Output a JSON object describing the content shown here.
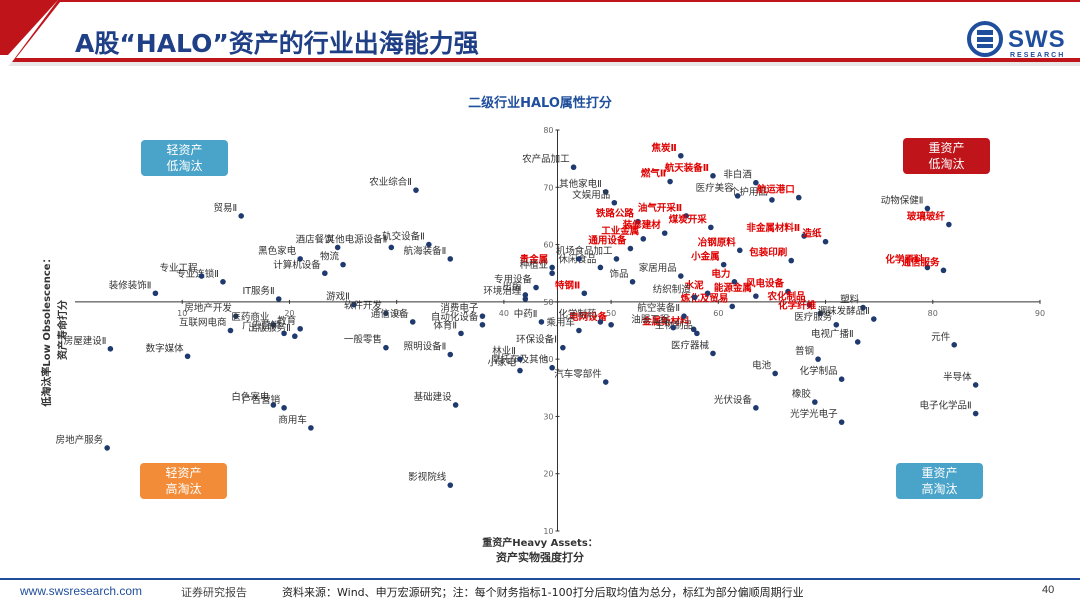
{
  "header": {
    "title": "A股“HALO”资产的行业出海能力强",
    "logo_text": "SWS",
    "logo_sub": "RESEARCH"
  },
  "footer": {
    "url": "www.swsresearch.com",
    "doc_type": "证券研究报告",
    "source_note": "资料来源：Wind、申万宏源研究；注：每个财务指标1-100打分后取均值为总分，标红为部分偏顺周期行业",
    "page": "40"
  },
  "colors": {
    "brand_blue": "#1f4e9c",
    "dot": "#1f3a6e",
    "highlight_red": "#e00000",
    "quad_light_blue": "#4aa3c9",
    "quad_red": "#c0141b",
    "quad_orange": "#f28c38"
  },
  "quadrants": [
    {
      "line1": "轻资产",
      "line2": "低淘汰",
      "color": "#4aa3c9"
    },
    {
      "line1": "重资产",
      "line2": "低淘汰",
      "color": "#c0141b"
    },
    {
      "line1": "轻资产",
      "line2": "高淘汰",
      "color": "#f28c38"
    },
    {
      "line1": "重资产",
      "line2": "高淘汰",
      "color": "#4aa3c9"
    }
  ],
  "chart_data": {
    "type": "scatter",
    "title": "二级行业HALO属性打分",
    "xlabel_line1": "重资产Heavy Assets：",
    "xlabel_line2": "资产实物强度打分",
    "ylabel_line1": "低淘汰率Low Obsolescence：",
    "ylabel_line2": "资产寿命打分",
    "xlim": [
      0,
      90
    ],
    "ylim": [
      10,
      80
    ],
    "x_ticks": [
      10,
      20,
      30,
      40,
      50,
      60,
      70,
      80,
      90
    ],
    "y_ticks": [
      10,
      20,
      30,
      40,
      50,
      60,
      70,
      80
    ],
    "crosshair": {
      "x": 45,
      "y": 50
    },
    "points": [
      {
        "name": "农产品加工",
        "x": 46.5,
        "y": 73.5,
        "red": false
      },
      {
        "name": "其他家电Ⅱ",
        "x": 49.5,
        "y": 69.2,
        "red": false
      },
      {
        "name": "文娱用品",
        "x": 50.3,
        "y": 67.3,
        "red": false
      },
      {
        "name": "焦炭Ⅱ",
        "x": 56.5,
        "y": 75.5,
        "red": true
      },
      {
        "name": "燃气Ⅱ",
        "x": 55.5,
        "y": 71.0,
        "red": true
      },
      {
        "name": "航天装备Ⅱ",
        "x": 59.5,
        "y": 72.0,
        "red": true
      },
      {
        "name": "非白酒",
        "x": 63.5,
        "y": 70.8,
        "red": false
      },
      {
        "name": "医疗美容",
        "x": 61.8,
        "y": 68.5,
        "red": false
      },
      {
        "name": "个护用品",
        "x": 65.0,
        "y": 67.8,
        "red": false
      },
      {
        "name": "航运港口",
        "x": 67.5,
        "y": 68.2,
        "red": true
      },
      {
        "name": "动物保健Ⅱ",
        "x": 79.5,
        "y": 66.3,
        "red": false
      },
      {
        "name": "玻璃玻纤",
        "x": 81.5,
        "y": 63.5,
        "red": true
      },
      {
        "name": "铁路公路",
        "x": 52.5,
        "y": 64.0,
        "red": true
      },
      {
        "name": "油气开采Ⅱ",
        "x": 57.0,
        "y": 65.0,
        "red": true
      },
      {
        "name": "工业金属",
        "x": 53.0,
        "y": 61.0,
        "red": true
      },
      {
        "name": "装修建材",
        "x": 55.0,
        "y": 62.0,
        "red": true
      },
      {
        "name": "煤炭开采",
        "x": 59.3,
        "y": 63.0,
        "red": true
      },
      {
        "name": "非金属材料Ⅱ",
        "x": 68.0,
        "y": 61.5,
        "red": true
      },
      {
        "name": "造纸",
        "x": 70.0,
        "y": 60.5,
        "red": true
      },
      {
        "name": "通用设备",
        "x": 51.8,
        "y": 59.3,
        "red": true
      },
      {
        "name": "冶钢原料",
        "x": 62.0,
        "y": 59.0,
        "red": true
      },
      {
        "name": "包装印刷",
        "x": 66.8,
        "y": 57.2,
        "red": true
      },
      {
        "name": "化学原料",
        "x": 79.5,
        "y": 56.0,
        "red": true
      },
      {
        "name": "通信服务",
        "x": 81.0,
        "y": 55.5,
        "red": true
      },
      {
        "name": "小金属",
        "x": 60.5,
        "y": 56.5,
        "red": true
      },
      {
        "name": "电力",
        "x": 61.5,
        "y": 53.5,
        "red": true
      },
      {
        "name": "风电设备",
        "x": 66.5,
        "y": 51.8,
        "red": true
      },
      {
        "name": "能源金属",
        "x": 63.5,
        "y": 51.0,
        "red": true
      },
      {
        "name": "水泥",
        "x": 59.0,
        "y": 51.5,
        "red": true
      },
      {
        "name": "农化制品",
        "x": 68.5,
        "y": 49.5,
        "red": true
      },
      {
        "name": "炼化及贸易",
        "x": 61.3,
        "y": 49.2,
        "red": true
      },
      {
        "name": "化学纤维",
        "x": 69.5,
        "y": 48.0,
        "red": true
      },
      {
        "name": "金属新材料",
        "x": 57.7,
        "y": 45.2,
        "red": true
      },
      {
        "name": "电网设备",
        "x": 50.0,
        "y": 46.0,
        "red": true
      },
      {
        "name": "特钢Ⅱ",
        "x": 47.5,
        "y": 51.5,
        "red": true
      },
      {
        "name": "贵金属",
        "x": 44.5,
        "y": 56.0,
        "red": true
      },
      {
        "name": "家居用品",
        "x": 56.5,
        "y": 54.5,
        "red": false
      },
      {
        "name": "塑料",
        "x": 73.5,
        "y": 49.0,
        "red": false
      },
      {
        "name": "调味发酵品Ⅱ",
        "x": 74.5,
        "y": 47.0,
        "red": false
      },
      {
        "name": "元件",
        "x": 82.0,
        "y": 42.5,
        "red": false
      },
      {
        "name": "医疗服务",
        "x": 71.0,
        "y": 46.0,
        "red": false
      },
      {
        "name": "电视广播Ⅱ",
        "x": 73.0,
        "y": 43.0,
        "red": false
      },
      {
        "name": "普钢",
        "x": 69.3,
        "y": 40.0,
        "red": false
      },
      {
        "name": "电池",
        "x": 65.3,
        "y": 37.5,
        "red": false
      },
      {
        "name": "化学制品",
        "x": 71.5,
        "y": 36.5,
        "red": false
      },
      {
        "name": "半导体",
        "x": 84.0,
        "y": 35.5,
        "red": false
      },
      {
        "name": "电子化学品Ⅱ",
        "x": 84.0,
        "y": 30.5,
        "red": false
      },
      {
        "name": "橡胶",
        "x": 69.0,
        "y": 32.5,
        "red": false
      },
      {
        "name": "光伏设备",
        "x": 63.5,
        "y": 31.5,
        "red": false
      },
      {
        "name": "光学光电子",
        "x": 71.5,
        "y": 29.0,
        "red": false
      },
      {
        "name": "生物制品",
        "x": 58.0,
        "y": 44.5,
        "red": false
      },
      {
        "name": "医疗器械",
        "x": 59.5,
        "y": 41.0,
        "red": false
      },
      {
        "name": "油服工程",
        "x": 55.8,
        "y": 45.5,
        "red": false
      },
      {
        "name": "汽车零部件",
        "x": 49.5,
        "y": 36.0,
        "red": false
      },
      {
        "name": "纺织制造",
        "x": 57.8,
        "y": 50.8,
        "red": false
      },
      {
        "name": "航空装备Ⅱ",
        "x": 56.8,
        "y": 47.5,
        "red": false
      },
      {
        "name": "饰品",
        "x": 52.0,
        "y": 53.5,
        "red": false
      },
      {
        "name": "休闲食品",
        "x": 49.0,
        "y": 56.0,
        "red": false
      },
      {
        "name": "食品加工",
        "x": 50.5,
        "y": 57.5,
        "red": false
      },
      {
        "name": "专业连锁Ⅱ",
        "x": 13.8,
        "y": 53.5,
        "red": false
      },
      {
        "name": "专业工程",
        "x": 11.8,
        "y": 54.5,
        "red": false
      },
      {
        "name": "装修装饰Ⅱ",
        "x": 7.5,
        "y": 51.5,
        "red": false
      },
      {
        "name": "贸易Ⅱ",
        "x": 15.5,
        "y": 65.0,
        "red": false
      },
      {
        "name": "酒店餐饮",
        "x": 24.5,
        "y": 59.5,
        "red": false
      },
      {
        "name": "黑色家电",
        "x": 21.0,
        "y": 57.5,
        "red": false
      },
      {
        "name": "其他电源设备Ⅱ",
        "x": 29.5,
        "y": 59.5,
        "red": false
      },
      {
        "name": "轨交设备Ⅱ",
        "x": 33.0,
        "y": 60.0,
        "red": false
      },
      {
        "name": "航海装备Ⅱ",
        "x": 35.0,
        "y": 57.5,
        "red": false
      },
      {
        "name": "计算机设备",
        "x": 23.3,
        "y": 55.0,
        "red": false
      },
      {
        "name": "物流",
        "x": 25.0,
        "y": 56.5,
        "red": false
      },
      {
        "name": "农业综合Ⅱ",
        "x": 31.8,
        "y": 69.5,
        "red": false
      },
      {
        "name": "IT服务Ⅱ",
        "x": 19.0,
        "y": 50.5,
        "red": false
      },
      {
        "name": "游戏Ⅱ",
        "x": 26.0,
        "y": 49.5,
        "red": false
      },
      {
        "name": "软件开发",
        "x": 29.0,
        "y": 48.0,
        "red": false
      },
      {
        "name": "通信设备",
        "x": 31.5,
        "y": 46.5,
        "red": false
      },
      {
        "name": "消费电子",
        "x": 38.0,
        "y": 47.5,
        "red": false
      },
      {
        "name": "环境治理",
        "x": 42.0,
        "y": 50.5,
        "red": false
      },
      {
        "name": "专用设备",
        "x": 43.0,
        "y": 52.5,
        "red": false
      },
      {
        "name": "种植业",
        "x": 44.5,
        "y": 55.0,
        "red": false
      },
      {
        "name": "机场",
        "x": 47.0,
        "y": 57.5,
        "red": false
      },
      {
        "name": "出版",
        "x": 42.0,
        "y": 51.2,
        "red": false
      },
      {
        "name": "房地产开发",
        "x": 15.0,
        "y": 47.5,
        "red": false
      },
      {
        "name": "医药商业",
        "x": 18.5,
        "y": 46.0,
        "red": false
      },
      {
        "name": "互联网电商",
        "x": 14.5,
        "y": 45.0,
        "red": false
      },
      {
        "name": "广告营销",
        "x": 19.5,
        "y": 44.5,
        "red": false
      },
      {
        "name": "教育",
        "x": 21.0,
        "y": 45.3,
        "red": false
      },
      {
        "name": "出版服务Ⅱ",
        "x": 20.5,
        "y": 44.0,
        "red": false
      },
      {
        "name": "房屋建设Ⅱ",
        "x": 3.3,
        "y": 41.8,
        "red": false
      },
      {
        "name": "数字媒体",
        "x": 10.5,
        "y": 40.5,
        "red": false
      },
      {
        "name": "一般零售",
        "x": 29.0,
        "y": 42.0,
        "red": false
      },
      {
        "name": "照明设备Ⅱ",
        "x": 35.0,
        "y": 40.8,
        "red": false
      },
      {
        "name": "体育Ⅱ",
        "x": 36.0,
        "y": 44.5,
        "red": false
      },
      {
        "name": "自动化设备",
        "x": 38.0,
        "y": 46.0,
        "red": false
      },
      {
        "name": "林业Ⅱ",
        "x": 41.5,
        "y": 40.0,
        "red": false
      },
      {
        "name": "小家电",
        "x": 41.5,
        "y": 38.0,
        "red": false
      },
      {
        "name": "摩托车及其他",
        "x": 44.5,
        "y": 38.5,
        "red": false
      },
      {
        "name": "环保设备Ⅱ",
        "x": 45.5,
        "y": 42.0,
        "red": false
      },
      {
        "name": "中药Ⅱ",
        "x": 43.5,
        "y": 46.5,
        "red": false
      },
      {
        "name": "乘用车",
        "x": 47.0,
        "y": 45.0,
        "red": false
      },
      {
        "name": "化学制药",
        "x": 49.0,
        "y": 46.5,
        "red": false
      },
      {
        "name": "白色家电",
        "x": 18.5,
        "y": 32.0,
        "red": false
      },
      {
        "name": "广告营销",
        "x": 19.5,
        "y": 31.5,
        "red": false
      },
      {
        "name": "商用车",
        "x": 22.0,
        "y": 28.0,
        "red": false
      },
      {
        "name": "房地产服务",
        "x": 3.0,
        "y": 24.5,
        "red": false
      },
      {
        "name": "基础建设",
        "x": 35.5,
        "y": 32.0,
        "red": false
      },
      {
        "name": "影视院线",
        "x": 35.0,
        "y": 18.0,
        "red": false
      }
    ]
  }
}
